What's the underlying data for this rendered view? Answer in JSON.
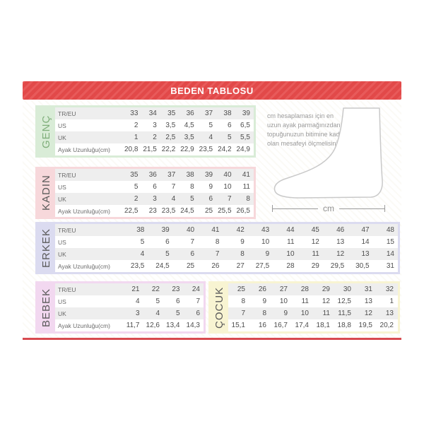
{
  "banner": {
    "title": "BEDEN TABLOSU",
    "color": "#e64a4a"
  },
  "bottom_rule_color": "#d84a50",
  "info": {
    "measure_hint": "cm hesaplaması için en uzun ayak parmağınızdan topuğunuzun bitimine kadar olan mesafeyi ölçmelisiniz.",
    "unit_label": "cm"
  },
  "tables": [
    {
      "key": "genc",
      "label": "GENÇ",
      "panel_color": "#d9ecd7",
      "label_color": "#7fae7a",
      "row_labels": [
        "TR/EU",
        "US",
        "UK",
        "Ayak Uzunluğu(cm)"
      ],
      "rows": [
        [
          "33",
          "34",
          "35",
          "36",
          "37",
          "38",
          "39"
        ],
        [
          "2",
          "3",
          "3,5",
          "4,5",
          "5",
          "6",
          "6,5"
        ],
        [
          "1",
          "2",
          "2,5",
          "3,5",
          "4",
          "5",
          "5,5"
        ],
        [
          "20,8",
          "21,5",
          "22,2",
          "22,9",
          "23,5",
          "24,2",
          "24,9"
        ]
      ]
    },
    {
      "key": "kadin",
      "label": "KADIN",
      "panel_color": "#f7d8db",
      "label_color": "#5a5a5a",
      "row_labels": [
        "TR/EU",
        "US",
        "UK",
        "Ayak Uzunluğu(cm)"
      ],
      "rows": [
        [
          "35",
          "36",
          "37",
          "38",
          "39",
          "40",
          "41"
        ],
        [
          "5",
          "6",
          "7",
          "8",
          "9",
          "10",
          "11"
        ],
        [
          "2",
          "3",
          "4",
          "5",
          "6",
          "7",
          "8"
        ],
        [
          "22,5",
          "23",
          "23,5",
          "24,5",
          "25",
          "25,5",
          "26,5"
        ]
      ]
    },
    {
      "key": "erkek",
      "label": "ERKEK",
      "panel_color": "#dbdbf0",
      "label_color": "#5a5a5a",
      "row_labels": [
        "TR/EU",
        "US",
        "UK",
        "Ayak Uzunluğu(cm)"
      ],
      "rows": [
        [
          "38",
          "39",
          "40",
          "41",
          "42",
          "43",
          "44",
          "45",
          "46",
          "47",
          "48"
        ],
        [
          "5",
          "6",
          "7",
          "8",
          "9",
          "10",
          "11",
          "12",
          "13",
          "14",
          "15"
        ],
        [
          "4",
          "5",
          "6",
          "7",
          "8",
          "9",
          "10",
          "11",
          "12",
          "13",
          "14"
        ],
        [
          "23,5",
          "24,5",
          "25",
          "26",
          "27",
          "27,5",
          "28",
          "29",
          "29,5",
          "30,5",
          "31"
        ]
      ]
    },
    {
      "key": "bebek",
      "label": "BEBEK",
      "panel_color": "#f2d8f0",
      "label_color": "#5a5a5a",
      "row_labels": [
        "TR/EU",
        "US",
        "UK",
        "Ayak Uzunluğu(cm)"
      ],
      "rows": [
        [
          "21",
          "22",
          "23",
          "24"
        ],
        [
          "4",
          "5",
          "6",
          "7"
        ],
        [
          "3",
          "4",
          "5",
          "6"
        ],
        [
          "11,7",
          "12,6",
          "13,4",
          "14,3"
        ]
      ]
    },
    {
      "key": "cocuk",
      "label": "ÇOCUK",
      "panel_color": "#f8f4d2",
      "label_color": "#5a5a5a",
      "row_labels": [],
      "rows": [
        [
          "25",
          "26",
          "27",
          "28",
          "29",
          "30",
          "31",
          "32"
        ],
        [
          "8",
          "9",
          "10",
          "11",
          "12",
          "12,5",
          "13",
          "1"
        ],
        [
          "7",
          "8",
          "9",
          "10",
          "11",
          "11,5",
          "12",
          "13"
        ],
        [
          "15,1",
          "16",
          "16,7",
          "17,4",
          "18,1",
          "18,8",
          "19,5",
          "20,2"
        ]
      ]
    }
  ]
}
